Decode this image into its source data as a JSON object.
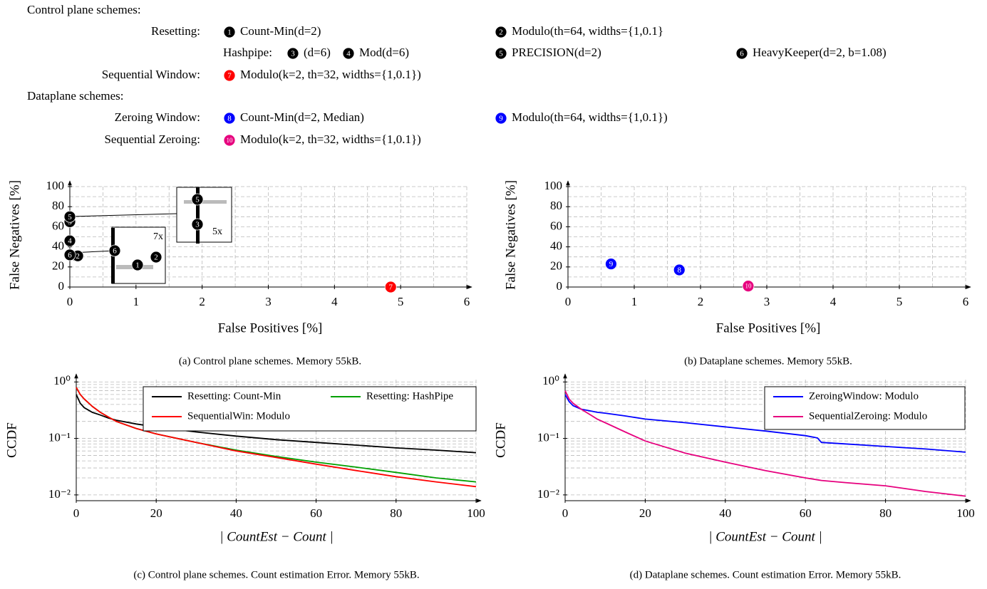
{
  "legend_block": {
    "groups": [
      {
        "title": "Control plane schemes:",
        "rows": [
          {
            "label": "Resetting:",
            "entries": [
              {
                "marker": "1",
                "color": "#000000",
                "text": "Count-Min(d=2)"
              },
              {
                "marker": "2",
                "color": "#000000",
                "text": "Modulo(th=64, widths={1,0.1}"
              }
            ]
          },
          {
            "prefix": "Hashpipe:",
            "entries": [
              {
                "marker": "3",
                "color": "#000000",
                "text": "(d=6)"
              },
              {
                "marker": "4",
                "color": "#000000",
                "text": "Mod(d=6)"
              },
              {
                "marker": "5",
                "color": "#000000",
                "text": "PRECISION(d=2)"
              },
              {
                "marker": "6",
                "color": "#000000",
                "text": "HeavyKeeper(d=2, b=1.08)"
              }
            ]
          },
          {
            "label": "Sequential Window:",
            "entries": [
              {
                "marker": "7",
                "color": "#ff0000",
                "text": "Modulo(k=2, th=32, widths={1,0.1})"
              }
            ]
          }
        ]
      },
      {
        "title": "Dataplane schemes:",
        "rows": [
          {
            "label": "Zeroing Window:",
            "entries": [
              {
                "marker": "8",
                "color": "#0000ff",
                "text": "Count-Min(d=2, Median)"
              },
              {
                "marker": "9",
                "color": "#0000ff",
                "text": "Modulo(th=64, widths={1,0.1})"
              }
            ]
          },
          {
            "label": "Sequential Zeroing:",
            "entries": [
              {
                "marker": "10",
                "color": "#e6007e",
                "text": "Modulo(k=2, th=32, widths={1,0.1})"
              }
            ]
          }
        ]
      }
    ]
  },
  "chart_data": [
    {
      "type": "scatter",
      "caption": "(a) Control plane schemes. Memory 55kB.",
      "xlabel": "False Positives [%]",
      "ylabel": "False Negatives [%]",
      "x": [
        0.1,
        0.12,
        0,
        0,
        0,
        0,
        4.85
      ],
      "values": [
        31,
        31,
        65,
        46,
        70,
        32,
        0
      ],
      "point_labels": [
        "1",
        "2",
        "3",
        "4",
        "5",
        "6",
        "7"
      ],
      "colors": [
        "#000000",
        "#000000",
        "#000000",
        "#000000",
        "#000000",
        "#000000",
        "#ff0000"
      ],
      "zoom_labels": [
        "7x",
        "5x"
      ],
      "xlim": [
        0,
        6
      ],
      "xticks": [
        0,
        1,
        2,
        3,
        4,
        5,
        6
      ],
      "xticks_minor": [
        0.5,
        1.5,
        2.5,
        3.5,
        4.5,
        5.5
      ],
      "ylim": [
        0,
        100
      ],
      "yticks": [
        0,
        20,
        40,
        60,
        80,
        100
      ],
      "yticks_minor": [
        10,
        30,
        50,
        70,
        90
      ],
      "grid": true
    },
    {
      "type": "scatter",
      "caption": "(b) Dataplane schemes. Memory 55kB.",
      "xlabel": "False Positives [%]",
      "ylabel": "False Negatives [%]",
      "x": [
        1.68,
        0.65,
        2.72
      ],
      "values": [
        17,
        23,
        1
      ],
      "point_labels": [
        "8",
        "9",
        "10"
      ],
      "colors": [
        "#0000ff",
        "#0000ff",
        "#e6007e"
      ],
      "xlim": [
        0,
        6
      ],
      "xticks": [
        0,
        1,
        2,
        3,
        4,
        5,
        6
      ],
      "xticks_minor": [
        0.5,
        1.5,
        2.5,
        3.5,
        4.5,
        5.5
      ],
      "ylim": [
        0,
        100
      ],
      "yticks": [
        0,
        20,
        40,
        60,
        80,
        100
      ],
      "yticks_minor": [
        10,
        30,
        50,
        70,
        90
      ],
      "grid": true
    },
    {
      "type": "line",
      "caption": "(c) Control plane schemes. Count estimation Error. Memory 55kB.",
      "xlabel": "| CountEst − Count |",
      "ylabel": "CCDF",
      "log_y": true,
      "x": [
        0,
        1,
        2,
        4,
        6,
        8,
        10,
        15,
        20,
        30,
        40,
        50,
        60,
        70,
        80,
        90,
        100
      ],
      "series": [
        {
          "name": "Resetting: Count-Min",
          "color": "#000000",
          "values": [
            0.6,
            0.42,
            0.35,
            0.29,
            0.26,
            0.23,
            0.21,
            0.18,
            0.16,
            0.13,
            0.11,
            0.095,
            0.085,
            0.076,
            0.068,
            0.062,
            0.056
          ]
        },
        {
          "name": "Resetting: HashPipe",
          "color": "#00a000",
          "values": [
            0.8,
            0.6,
            0.5,
            0.37,
            0.29,
            0.24,
            0.2,
            0.15,
            0.12,
            0.085,
            0.062,
            0.048,
            0.038,
            0.031,
            0.025,
            0.02,
            0.017
          ]
        },
        {
          "name": "SequentialWin: Modulo",
          "color": "#ff0000",
          "values": [
            0.8,
            0.6,
            0.5,
            0.37,
            0.29,
            0.24,
            0.2,
            0.15,
            0.12,
            0.085,
            0.06,
            0.046,
            0.035,
            0.027,
            0.021,
            0.017,
            0.014
          ]
        }
      ],
      "legend_loc": "upper right",
      "xlim": [
        0,
        100
      ],
      "xticks": [
        0,
        20,
        40,
        60,
        80,
        100
      ],
      "ylim": [
        0.0079,
        1.1
      ],
      "yticks": [
        {
          "value": 0.01,
          "label": "10⁻²"
        },
        {
          "value": 0.1,
          "label": "10⁻¹"
        },
        {
          "value": 1,
          "label": "10⁰"
        }
      ],
      "yticks_minor": [
        0.02,
        0.03,
        0.04,
        0.05,
        0.06,
        0.07,
        0.08,
        0.09,
        0.2,
        0.3,
        0.4,
        0.5,
        0.6,
        0.7,
        0.8,
        0.9
      ],
      "grid": true
    },
    {
      "type": "line",
      "caption": "(d) Dataplane schemes. Count estimation Error. Memory 55kB.",
      "xlabel": "| CountEst − Count |",
      "ylabel": "CCDF",
      "log_y": true,
      "x": [
        0,
        1,
        2,
        4,
        6,
        8,
        10,
        15,
        20,
        30,
        40,
        50,
        60,
        63,
        64,
        70,
        80,
        90,
        100
      ],
      "series": [
        {
          "name": "ZeroingWindow: Modulo",
          "color": "#0000ff",
          "values": [
            0.6,
            0.45,
            0.38,
            0.33,
            0.31,
            0.29,
            0.28,
            0.25,
            0.22,
            0.19,
            0.16,
            0.135,
            0.112,
            0.102,
            0.085,
            0.08,
            0.072,
            0.065,
            0.057
          ]
        },
        {
          "name": "SequentialZeroing: Modulo",
          "color": "#e6007e",
          "values": [
            0.7,
            0.5,
            0.42,
            0.33,
            0.27,
            0.22,
            0.19,
            0.13,
            0.09,
            0.055,
            0.038,
            0.027,
            0.02,
            0.0185,
            0.018,
            0.0165,
            0.0145,
            0.0115,
            0.0095
          ]
        }
      ],
      "legend_loc": "upper right",
      "xlim": [
        0,
        100
      ],
      "xticks": [
        0,
        20,
        40,
        60,
        80,
        100
      ],
      "ylim": [
        0.0079,
        1.1
      ],
      "yticks": [
        {
          "value": 0.01,
          "label": "10⁻²"
        },
        {
          "value": 0.1,
          "label": "10⁻¹"
        },
        {
          "value": 1,
          "label": "10⁰"
        }
      ],
      "yticks_minor": [
        0.02,
        0.03,
        0.04,
        0.05,
        0.06,
        0.07,
        0.08,
        0.09,
        0.2,
        0.3,
        0.4,
        0.5,
        0.6,
        0.7,
        0.8,
        0.9
      ],
      "grid": true
    }
  ]
}
